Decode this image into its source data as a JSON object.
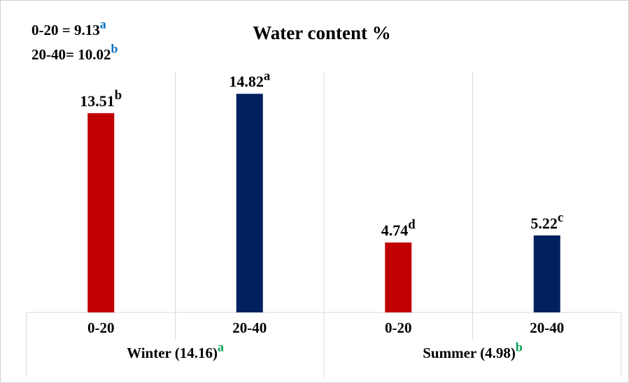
{
  "chart_data": {
    "type": "bar",
    "title": "Water content %",
    "categories": [
      "0-20",
      "20-40",
      "0-20",
      "20-40"
    ],
    "values": [
      13.51,
      14.82,
      4.74,
      5.22
    ],
    "value_superscripts": [
      "b",
      "a",
      "d",
      "c"
    ],
    "colors": [
      "#c00000",
      "#002060",
      "#c00000",
      "#002060"
    ],
    "groups": [
      {
        "label": "Winter (14.16)",
        "superscript": "a",
        "superscript_color": "#00a050"
      },
      {
        "label": "Summer (4.98)",
        "superscript": "b",
        "superscript_color": "#00a050"
      }
    ],
    "annotations": [
      {
        "text": "0-20 = 9.13",
        "superscript": "a",
        "superscript_color": "#0070c0"
      },
      {
        "text": "20-40= 10.02",
        "superscript": "b",
        "superscript_color": "#0070c0"
      }
    ],
    "ylim": [
      0,
      16.3
    ],
    "grid": true
  }
}
